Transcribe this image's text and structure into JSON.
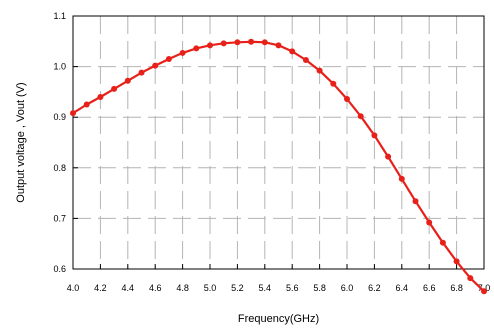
{
  "chart_data": {
    "type": "line",
    "title": "",
    "xlabel": "Frequency(GHz)",
    "ylabel": "Output voltage , Vout (V)",
    "xlim": [
      4.0,
      7.0
    ],
    "ylim": [
      0.6,
      1.1
    ],
    "x_ticks": [
      4.0,
      4.2,
      4.4,
      4.6,
      4.8,
      5.0,
      5.2,
      5.4,
      5.6,
      5.8,
      6.0,
      6.2,
      6.4,
      6.6,
      6.8,
      7.0
    ],
    "x_tick_labels": [
      "4.0",
      "4.2",
      "4.4",
      "4.6",
      "4.8",
      "5.0",
      "5.2",
      "5.4",
      "5.6",
      "5.8",
      "6.0",
      "6.2",
      "6.4",
      "6.6",
      "6.8",
      "7.0"
    ],
    "y_ticks": [
      0.6,
      0.7,
      0.8,
      0.9,
      1.0,
      1.1
    ],
    "y_tick_labels": [
      "0.6",
      "0.7",
      "0.8",
      "0.9",
      "1.0",
      "1.1"
    ],
    "grid": true,
    "grid_style": "dashed",
    "series": [
      {
        "color": "#e8201a",
        "marker": "circle",
        "x": [
          4.0,
          4.1,
          4.2,
          4.3,
          4.4,
          4.5,
          4.6,
          4.7,
          4.8,
          4.9,
          5.0,
          5.1,
          5.2,
          5.3,
          5.4,
          5.5,
          5.6,
          5.7,
          5.8,
          5.9,
          6.0,
          6.1,
          6.2,
          6.3,
          6.4,
          6.5,
          6.6,
          6.7,
          6.8,
          6.9,
          7.0
        ],
        "y": [
          0.908,
          0.925,
          0.94,
          0.956,
          0.972,
          0.988,
          1.002,
          1.015,
          1.027,
          1.036,
          1.042,
          1.046,
          1.048,
          1.049,
          1.048,
          1.042,
          1.03,
          1.013,
          0.992,
          0.966,
          0.936,
          0.902,
          0.864,
          0.822,
          0.778,
          0.734,
          0.692,
          0.652,
          0.615,
          0.582,
          0.556
        ]
      }
    ]
  }
}
